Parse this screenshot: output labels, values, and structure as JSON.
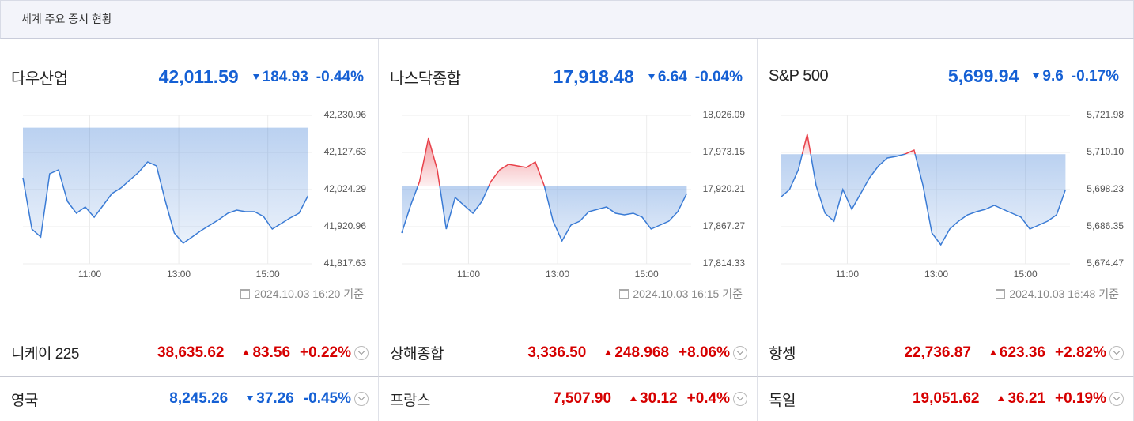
{
  "header": {
    "title": "세계 주요 증시 현황"
  },
  "indices": [
    {
      "name": "다우산업",
      "price": "42,011.59",
      "change": "184.93",
      "change_pct": "-0.44%",
      "direction": "down",
      "timestamp": "2024.10.03 16:20 기준"
    },
    {
      "name": "나스닥종합",
      "price": "17,918.48",
      "change": "6.64",
      "change_pct": "-0.04%",
      "direction": "down",
      "timestamp": "2024.10.03 16:15 기준"
    },
    {
      "name": "S&P 500",
      "price": "5,699.94",
      "change": "9.6",
      "change_pct": "-0.17%",
      "direction": "down",
      "timestamp": "2024.10.03 16:48 기준"
    }
  ],
  "chart_data": [
    {
      "type": "line",
      "color": "#3a7bd5",
      "up_color": "#e8414a",
      "grid": true,
      "baseline": 42196.52,
      "x": [
        9.5,
        9.7,
        9.9,
        10.1,
        10.3,
        10.5,
        10.7,
        10.9,
        11.1,
        11.3,
        11.5,
        11.7,
        11.9,
        12.1,
        12.3,
        12.5,
        12.7,
        12.9,
        13.1,
        13.3,
        13.5,
        13.7,
        13.9,
        14.1,
        14.3,
        14.5,
        14.7,
        14.9,
        15.1,
        15.3,
        15.5,
        15.7,
        15.9
      ],
      "values": [
        42057.3,
        41914.4,
        41892.4,
        42068.3,
        42079.3,
        41991.3,
        41958.3,
        41975.9,
        41947.4,
        41980.3,
        42013.3,
        42028.7,
        42050.7,
        42072.7,
        42101.2,
        42090.3,
        41991.3,
        41903.4,
        41874.8,
        41892.4,
        41910.0,
        41925.4,
        41940.8,
        41958.3,
        41967.1,
        41962.7,
        41962.7,
        41949.5,
        41914.4,
        41929.8,
        41945.2,
        41958.3,
        42006.7
      ],
      "xlim": [
        9.5,
        16
      ],
      "xticks": [
        {
          "value": 11,
          "label": "11:00"
        },
        {
          "value": 13,
          "label": "13:00"
        },
        {
          "value": 15,
          "label": "15:00"
        }
      ],
      "ylim": [
        41817.63,
        42230.96
      ],
      "yticks": [
        {
          "value": 41817.63,
          "label": "41,817.63"
        },
        {
          "value": 41920.96,
          "label": "41,920.96"
        },
        {
          "value": 42024.29,
          "label": "42,024.29"
        },
        {
          "value": 42127.63,
          "label": "42,127.63"
        },
        {
          "value": 42230.96,
          "label": "42,230.96"
        }
      ]
    },
    {
      "type": "line",
      "color": "#3a7bd5",
      "up_color": "#e8414a",
      "grid": true,
      "baseline": 17925.12,
      "x": [
        9.5,
        9.7,
        9.9,
        10.1,
        10.3,
        10.5,
        10.7,
        10.9,
        11.1,
        11.3,
        11.5,
        11.7,
        11.9,
        12.1,
        12.3,
        12.5,
        12.7,
        12.9,
        13.1,
        13.3,
        13.5,
        13.7,
        13.9,
        14.1,
        14.3,
        14.5,
        14.7,
        14.9,
        15.1,
        15.3,
        15.5,
        15.7,
        15.9
      ],
      "values": [
        17858.3,
        17897.7,
        17931.5,
        17993.4,
        17948.4,
        17863.9,
        17909.0,
        17897.7,
        17886.4,
        17903.3,
        17931.5,
        17948.4,
        17956.3,
        17954.0,
        17951.8,
        17959.6,
        17925.8,
        17875.2,
        17847.0,
        17869.5,
        17875.2,
        17888.7,
        17892.1,
        17895.4,
        17886.4,
        17884.2,
        17886.4,
        17880.8,
        17863.9,
        17869.5,
        17875.2,
        17888.7,
        17914.6
      ],
      "xlim": [
        9.5,
        16
      ],
      "xticks": [
        {
          "value": 11,
          "label": "11:00"
        },
        {
          "value": 13,
          "label": "13:00"
        },
        {
          "value": 15,
          "label": "15:00"
        }
      ],
      "ylim": [
        17814.33,
        18026.09
      ],
      "yticks": [
        {
          "value": 17814.33,
          "label": "17,814.33"
        },
        {
          "value": 17867.27,
          "label": "17,867.27"
        },
        {
          "value": 17920.21,
          "label": "17,920.21"
        },
        {
          "value": 17973.15,
          "label": "17,973.15"
        },
        {
          "value": 18026.09,
          "label": "18,026.09"
        }
      ]
    },
    {
      "type": "line",
      "color": "#3a7bd5",
      "up_color": "#e8414a",
      "grid": true,
      "baseline": 5709.54,
      "x": [
        9.5,
        9.7,
        9.9,
        10.1,
        10.3,
        10.5,
        10.7,
        10.9,
        11.1,
        11.3,
        11.5,
        11.7,
        11.9,
        12.1,
        12.3,
        12.5,
        12.7,
        12.9,
        13.1,
        13.3,
        13.5,
        13.7,
        13.9,
        14.1,
        14.3,
        14.5,
        14.7,
        14.9,
        15.1,
        15.3,
        15.5,
        15.7,
        15.9
      ],
      "values": [
        5695.7,
        5698.23,
        5704.54,
        5715.91,
        5699.49,
        5690.64,
        5688.12,
        5698.23,
        5691.91,
        5696.96,
        5702.02,
        5705.81,
        5708.33,
        5708.84,
        5709.6,
        5710.86,
        5699.49,
        5684.33,
        5680.54,
        5685.59,
        5688.12,
        5690.14,
        5691.15,
        5691.91,
        5693.17,
        5691.91,
        5690.64,
        5689.38,
        5685.59,
        5686.85,
        5688.12,
        5690.14,
        5698.23
      ],
      "xlim": [
        9.5,
        16
      ],
      "xticks": [
        {
          "value": 11,
          "label": "11:00"
        },
        {
          "value": 13,
          "label": "13:00"
        },
        {
          "value": 15,
          "label": "15:00"
        }
      ],
      "ylim": [
        5674.47,
        5721.98
      ],
      "yticks": [
        {
          "value": 5674.47,
          "label": "5,674.47"
        },
        {
          "value": 5686.35,
          "label": "5,686.35"
        },
        {
          "value": 5698.23,
          "label": "5,698.23"
        },
        {
          "value": 5710.1,
          "label": "5,710.10"
        },
        {
          "value": 5721.98,
          "label": "5,721.98"
        }
      ]
    }
  ],
  "markets": [
    [
      {
        "name": "니케이 225",
        "price": "38,635.62",
        "change": "83.56",
        "change_pct": "+0.22%",
        "direction": "up"
      },
      {
        "name": "상해종합",
        "price": "3,336.50",
        "change": "248.968",
        "change_pct": "+8.06%",
        "direction": "up"
      },
      {
        "name": "항셍",
        "price": "22,736.87",
        "change": "623.36",
        "change_pct": "+2.82%",
        "direction": "up"
      }
    ],
    [
      {
        "name": "영국",
        "price": "8,245.26",
        "change": "37.26",
        "change_pct": "-0.45%",
        "direction": "down"
      },
      {
        "name": "프랑스",
        "price": "7,507.90",
        "change": "30.12",
        "change_pct": "+0.4%",
        "direction": "up"
      },
      {
        "name": "독일",
        "price": "19,051.62",
        "change": "36.21",
        "change_pct": "+0.19%",
        "direction": "up"
      }
    ]
  ]
}
